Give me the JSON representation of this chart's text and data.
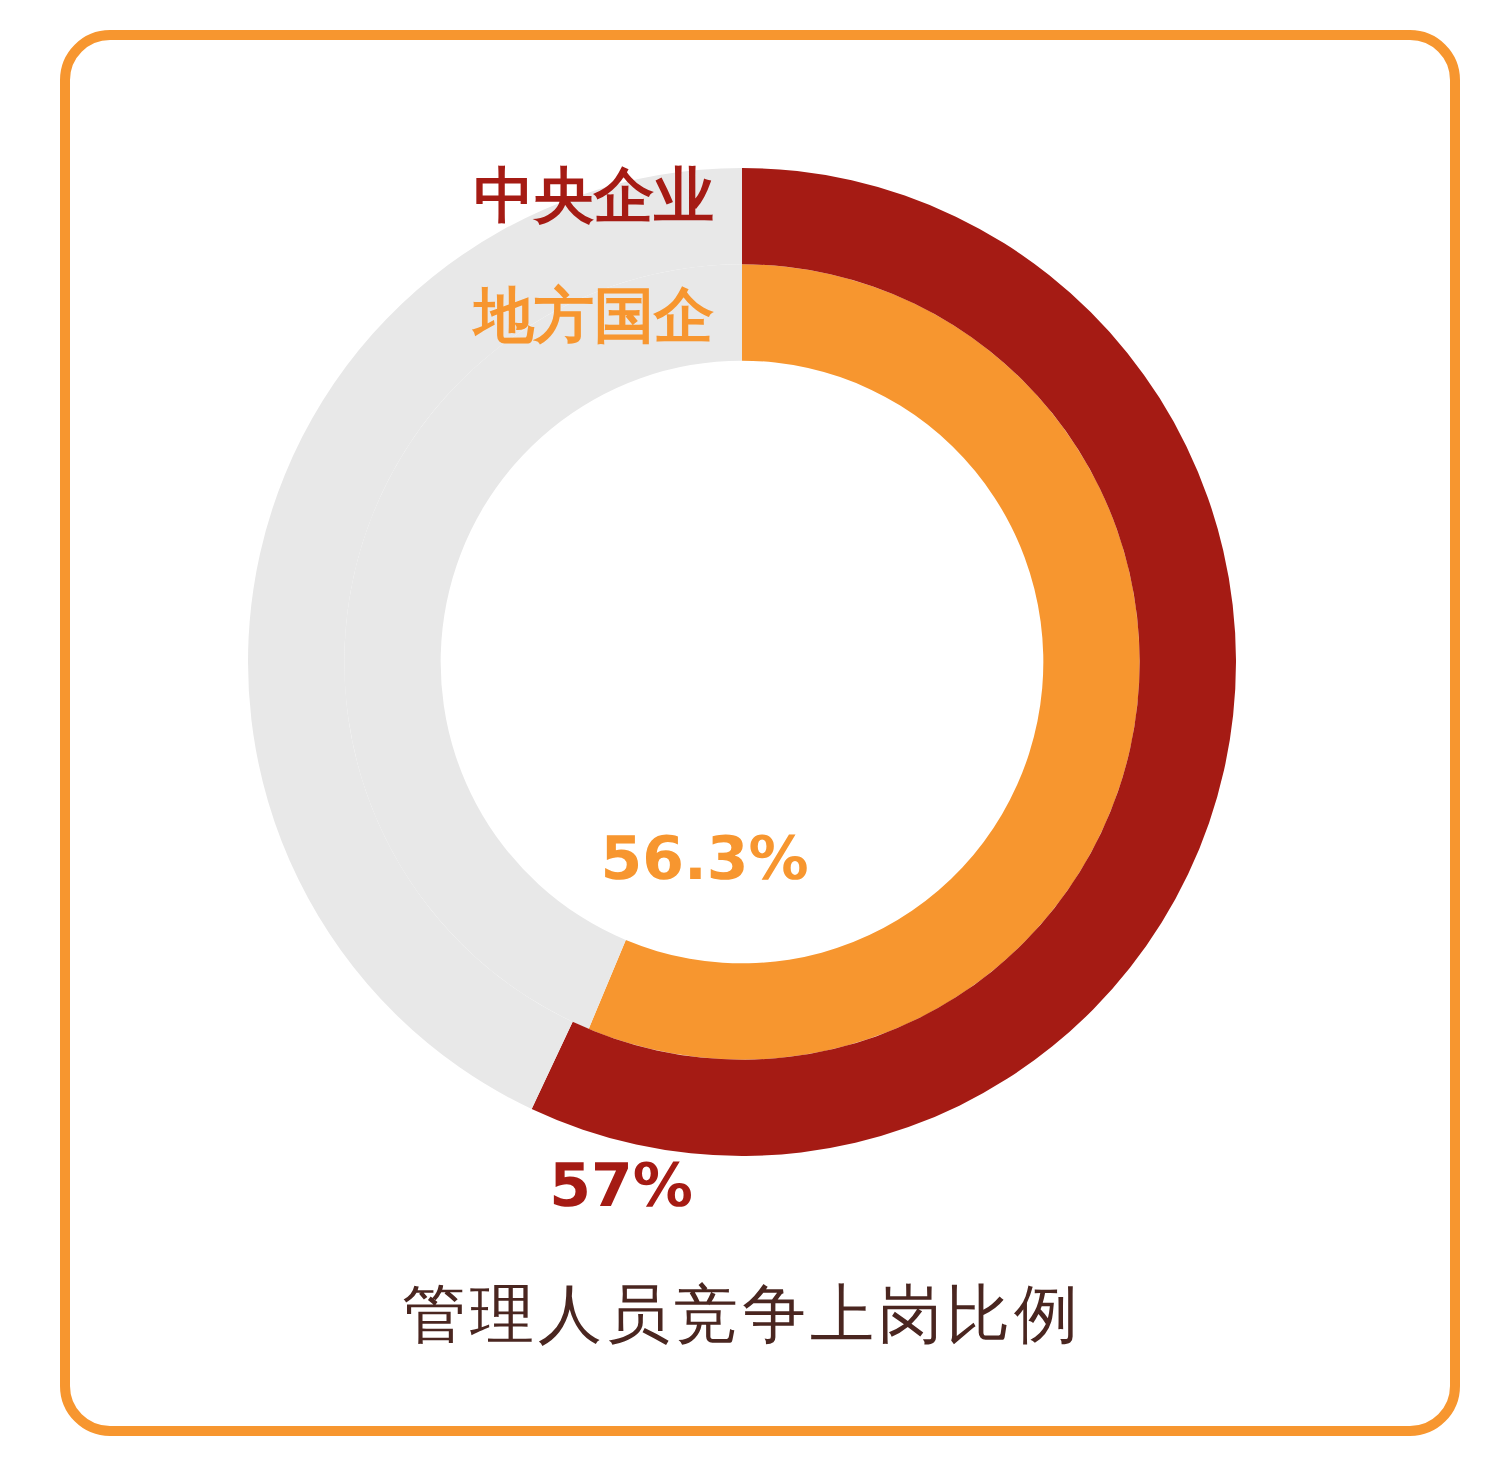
{
  "chart_data": {
    "type": "donut",
    "title": "管理人员竞争上岗比例",
    "categories": [
      null,
      null
    ],
    "series": [
      {
        "name": "中央企业",
        "color": "#a51b14",
        "values": [
          57,
          43
        ],
        "colors": [
          "#a51b14",
          "#e8e8e8"
        ],
        "value_labels": [
          "57%",
          null
        ]
      },
      {
        "name": "地方国企",
        "color": "#f7962f",
        "values": [
          56.3,
          43.7
        ],
        "colors": [
          "#f7962f",
          "#e8e8e8"
        ],
        "value_labels": [
          "56.3%",
          null
        ]
      }
    ],
    "legend": false
  }
}
